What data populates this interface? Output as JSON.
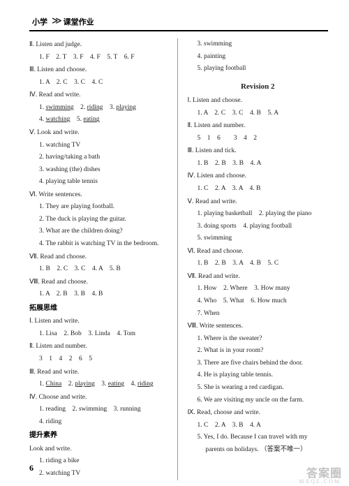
{
  "header": {
    "left": "小学",
    "right": "课堂作业"
  },
  "pageNumber": "6",
  "watermark": "答案圈",
  "watermarkSub": "MXQE.COM",
  "left": {
    "s1": {
      "title": "Ⅱ. Listen and judge.",
      "line": "1. F　2. T　3. F　4. F　5. T　6. F"
    },
    "s2": {
      "title": "Ⅲ. Listen and choose.",
      "line": "1. A　2. C　3. C　4. C"
    },
    "s3": {
      "title": "Ⅳ. Read and write.",
      "l1a": "1. ",
      "l1b": "swimming",
      "l1c": "　2. ",
      "l1d": "riding",
      "l1e": "　3. ",
      "l1f": "playing",
      "l2a": "4. ",
      "l2b": "watching",
      "l2c": "　5. ",
      "l2d": "eating"
    },
    "s4": {
      "title": "Ⅴ. Look and write.",
      "l1": "1. watching TV",
      "l2": "2. having/taking a bath",
      "l3": "3. washing (the) dishes",
      "l4": "4. playing table tennis"
    },
    "s5": {
      "title": "Ⅵ. Write sentences.",
      "l1": "1. They are playing football.",
      "l2": "2. The duck is playing the guitar.",
      "l3": "3. What are the children doing?",
      "l4": "4. The rabbit is watching TV in the bedroom."
    },
    "s6": {
      "title": "Ⅶ. Read and choose.",
      "line": "1. B　2. C　3. C　4. A　5. B"
    },
    "s7": {
      "title": "Ⅷ. Read and choose.",
      "line": "1. A　2. B　3. B　4. B"
    },
    "h1": "拓展思维",
    "s8": {
      "title": "Ⅰ. Listen and write.",
      "line": "1. Lisa　2. Bob　3. Linda　4. Tom"
    },
    "s9": {
      "title": "Ⅱ. Listen and number.",
      "line": "3　1　4　2　6　5"
    },
    "s10": {
      "title": "Ⅲ. Read and write.",
      "l1a": "1. ",
      "l1b": "China",
      "l1c": "　2. ",
      "l1d": "playing",
      "l1e": "　3. ",
      "l1f": "eating",
      "l1g": "　4. ",
      "l1h": "riding"
    },
    "s11": {
      "title": "Ⅳ. Choose and write.",
      "l1": "1. reading　2. swimming　3. running",
      "l2": "4. riding"
    },
    "h2": "提升素养",
    "s12": {
      "title": "Look and write.",
      "l1": "1. riding a bike",
      "l2": "2. watching TV"
    }
  },
  "right": {
    "top": {
      "l1": "3. swimming",
      "l2": "4. painting",
      "l3": "5. playing football"
    },
    "rev": "Revision 2",
    "s1": {
      "title": "Ⅰ. Listen and choose.",
      "line": "1. A　2. C　3. C　4. B　5. A"
    },
    "s2": {
      "title": "Ⅱ. Listen and number.",
      "line": "5　1　6　　3　4　2"
    },
    "s3": {
      "title": "Ⅲ. Listen and tick.",
      "line": "1. B　2. B　3. B　4. A"
    },
    "s4": {
      "title": "Ⅳ. Listen and choose.",
      "line": "1. C　2. A　3. A　4. B"
    },
    "s5": {
      "title": "Ⅴ. Read and write.",
      "l1": "1. playing basketball　2. playing the piano",
      "l2": "3. doing sports　4. playing football",
      "l3": "5. swimming"
    },
    "s6": {
      "title": "Ⅵ. Read and choose.",
      "line": "1. B　2. B　3. A　4. B　5. C"
    },
    "s7": {
      "title": "Ⅶ. Read and write.",
      "l1": "1. How　2. Where　3. How many",
      "l2": "4. Who　5. What　6. How much",
      "l3": "7. When"
    },
    "s8": {
      "title": "Ⅷ. Write sentences.",
      "l1": "1. Where is the sweater?",
      "l2": "2. What is in your room?",
      "l3": "3. There are five chairs behind the door.",
      "l4": "4. He is playing table tennis.",
      "l5": "5. She is wearing a red cardigan.",
      "l6": "6. We are visiting my uncle on the farm."
    },
    "s9": {
      "title": "Ⅸ. Read, choose and write.",
      "l1": "1. C　2. A　3. B　4. A",
      "l2": "5. Yes, I do. Because I can travel with my",
      "l3": "　 parents on holidays. （答案不唯一）"
    }
  }
}
